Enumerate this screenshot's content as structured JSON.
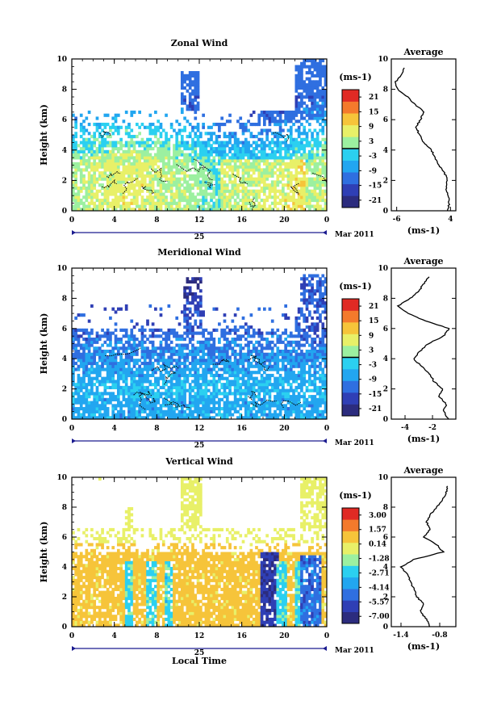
{
  "x_axis_label": "Local Time",
  "date_label": "Mar 2011",
  "day_label": "25",
  "colors": {
    "axis": "#000000",
    "date_bar": "#1b1b8f",
    "colormap": [
      "#2c2c7e",
      "#2f3fb5",
      "#2f6fe0",
      "#22a6f0",
      "#2bd0f0",
      "#9cf0a0",
      "#e8f068",
      "#f6c43a",
      "#f47a2c",
      "#e02a24"
    ]
  },
  "chart_data": [
    {
      "type": "heatmap",
      "title": "Zonal Wind",
      "ylabel": "Height (km)",
      "xlim": [
        0,
        24
      ],
      "ylim": [
        0,
        10
      ],
      "xticks": [
        "0",
        "4",
        "8",
        "12",
        "16",
        "20",
        "0"
      ],
      "yticks": [
        "0",
        "2",
        "4",
        "6",
        "8",
        "10"
      ],
      "colorbar": {
        "unit": "(ms-1)",
        "ticks": [
          "21",
          "15",
          "9",
          "3",
          "-3",
          "-9",
          "-15",
          "-21"
        ],
        "range": [
          -24,
          24
        ]
      },
      "zero_contour": true,
      "average_profile": {
        "title": "Average",
        "xlabel": "(ms-1)",
        "xticks": [
          "-6",
          "4"
        ],
        "xlim": [
          -7,
          5
        ],
        "height_km": [
          0.0,
          0.5,
          1.0,
          1.5,
          2.0,
          2.5,
          3.0,
          3.5,
          4.0,
          4.5,
          5.0,
          5.5,
          6.0,
          6.5,
          7.0,
          7.5,
          8.0,
          8.5,
          9.0,
          9.5
        ],
        "values": [
          3.5,
          3.8,
          3.6,
          3.2,
          3.4,
          2.9,
          1.8,
          1.2,
          0.4,
          -1.0,
          -1.8,
          -2.4,
          -1.6,
          -0.9,
          -2.5,
          -4.0,
          -5.8,
          -6.2,
          -5.0,
          -4.6
        ]
      }
    },
    {
      "type": "heatmap",
      "title": "Meridional Wind",
      "ylabel": "Height (km)",
      "xlim": [
        0,
        24
      ],
      "ylim": [
        0,
        10
      ],
      "xticks": [
        "0",
        "4",
        "8",
        "12",
        "16",
        "20",
        "0"
      ],
      "yticks": [
        "0",
        "2",
        "4",
        "6",
        "8",
        "10"
      ],
      "colorbar": {
        "unit": "(ms-1)",
        "ticks": [
          "21",
          "15",
          "9",
          "3",
          "-3",
          "-9",
          "-15",
          "-21"
        ],
        "range": [
          -24,
          24
        ]
      },
      "zero_contour": true,
      "average_profile": {
        "title": "Average",
        "xlabel": "(ms-1)",
        "xticks": [
          "-4",
          "-2"
        ],
        "xlim": [
          -5,
          -0.3
        ],
        "height_km": [
          0.0,
          0.5,
          1.0,
          1.5,
          2.0,
          2.5,
          3.0,
          3.5,
          4.0,
          4.5,
          5.0,
          5.5,
          6.0,
          6.5,
          7.0,
          7.5,
          8.0,
          8.5,
          9.0,
          9.5
        ],
        "values": [
          -0.8,
          -1.2,
          -1.0,
          -1.5,
          -1.3,
          -1.9,
          -2.2,
          -2.8,
          -3.4,
          -2.9,
          -2.3,
          -1.2,
          -0.8,
          -2.5,
          -3.8,
          -4.5,
          -3.6,
          -3.0,
          -2.6,
          -2.2
        ]
      }
    },
    {
      "type": "heatmap",
      "title": "Vertical Wind",
      "ylabel": "Height (km)",
      "xlim": [
        0,
        24
      ],
      "ylim": [
        0,
        10
      ],
      "xticks": [
        "0",
        "4",
        "8",
        "12",
        "16",
        "20",
        "0"
      ],
      "yticks": [
        "0",
        "2",
        "4",
        "6",
        "8",
        "10"
      ],
      "colorbar": {
        "unit": "(ms-1)",
        "ticks": [
          "3.00",
          "1.57",
          "0.14",
          "-1.28",
          "-2.71",
          "-4.14",
          "-5.57",
          "-7.00"
        ],
        "range": [
          -7.7,
          3.7
        ]
      },
      "zero_contour": false,
      "average_profile": {
        "title": "Average",
        "xlabel": "(ms-1)",
        "xticks": [
          "-1.4",
          "-0.8"
        ],
        "xlim": [
          -1.55,
          -0.55
        ],
        "height_km": [
          0.0,
          0.5,
          1.0,
          1.5,
          2.0,
          2.5,
          3.0,
          3.5,
          4.0,
          4.5,
          5.0,
          5.5,
          6.0,
          6.5,
          7.0,
          7.5,
          8.0,
          8.5,
          9.0,
          9.5
        ],
        "values": [
          -0.95,
          -1.0,
          -1.1,
          -1.05,
          -1.15,
          -1.2,
          -1.25,
          -1.3,
          -1.4,
          -1.2,
          -0.75,
          -0.85,
          -1.05,
          -0.95,
          -1.0,
          -0.95,
          -0.85,
          -0.75,
          -0.7,
          -0.68
        ]
      }
    }
  ]
}
